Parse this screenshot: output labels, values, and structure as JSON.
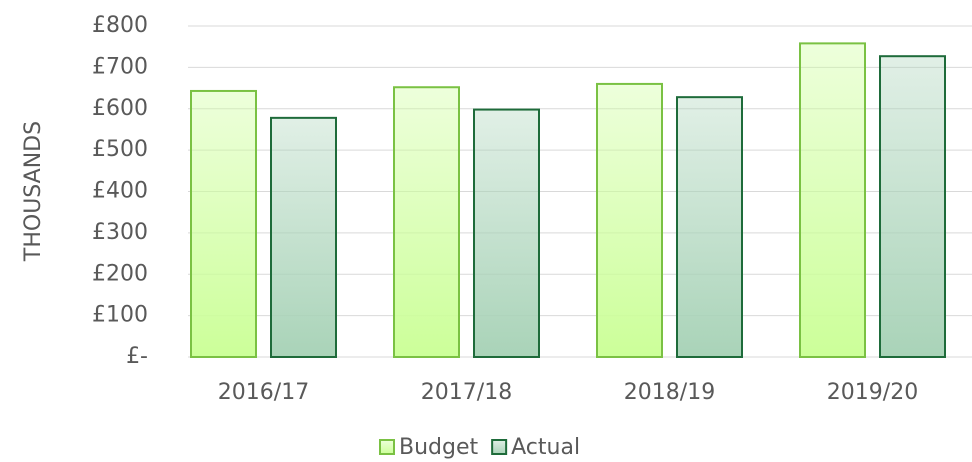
{
  "chart_data": {
    "type": "bar",
    "y_axis_label": "THOUSANDS",
    "categories": [
      "2016/17",
      "2017/18",
      "2018/19",
      "2019/20"
    ],
    "series": [
      {
        "name": "Budget",
        "color": "#ccff99",
        "border_color": "#7ac143",
        "values": [
          643,
          652,
          660,
          758
        ]
      },
      {
        "name": "Actual",
        "color": "#a9d3b8",
        "border_color": "#1e6b3a",
        "values": [
          578,
          598,
          628,
          727
        ]
      }
    ],
    "ylim": [
      0,
      800
    ],
    "yticks": [
      {
        "value": 0,
        "label": "£-"
      },
      {
        "value": 100,
        "label": "£100"
      },
      {
        "value": 200,
        "label": "£200"
      },
      {
        "value": 300,
        "label": "£300"
      },
      {
        "value": 400,
        "label": "£400"
      },
      {
        "value": 500,
        "label": "£500"
      },
      {
        "value": 600,
        "label": "£600"
      },
      {
        "value": 700,
        "label": "£700"
      },
      {
        "value": 800,
        "label": "£800"
      }
    ],
    "grid": true,
    "legend": "bottom"
  }
}
